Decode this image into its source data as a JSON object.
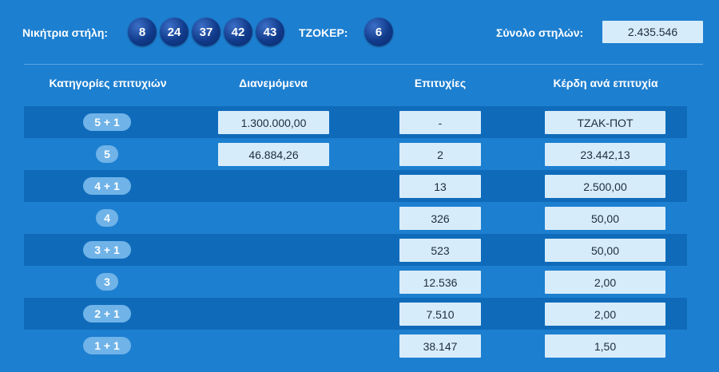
{
  "header": {
    "winning_label": "Νικήτρια στήλη:",
    "numbers": [
      "8",
      "24",
      "37",
      "42",
      "43"
    ],
    "joker_label": "ΤΖΟΚΕΡ:",
    "joker": "6",
    "total_label": "Σύνολο στηλών:",
    "total_value": "2.435.546"
  },
  "table": {
    "columns": [
      "Κατηγορίες επιτυχιών",
      "Διανεμόμενα",
      "Επιτυχίες",
      "Κέρδη ανά επιτυχία"
    ],
    "rows": [
      {
        "category": "5 + 1",
        "distributed": "1.300.000,00",
        "winners": "-",
        "prize": "ΤΖΑΚ-ΠΟΤ"
      },
      {
        "category": "5",
        "distributed": "46.884,26",
        "winners": "2",
        "prize": "23.442,13"
      },
      {
        "category": "4 + 1",
        "distributed": "",
        "winners": "13",
        "prize": "2.500,00"
      },
      {
        "category": "4",
        "distributed": "",
        "winners": "326",
        "prize": "50,00"
      },
      {
        "category": "3 + 1",
        "distributed": "",
        "winners": "523",
        "prize": "50,00"
      },
      {
        "category": "3",
        "distributed": "",
        "winners": "12.536",
        "prize": "2,00"
      },
      {
        "category": "2 + 1",
        "distributed": "",
        "winners": "7.510",
        "prize": "2,00"
      },
      {
        "category": "1 + 1",
        "distributed": "",
        "winners": "38.147",
        "prize": "1,50"
      }
    ]
  }
}
